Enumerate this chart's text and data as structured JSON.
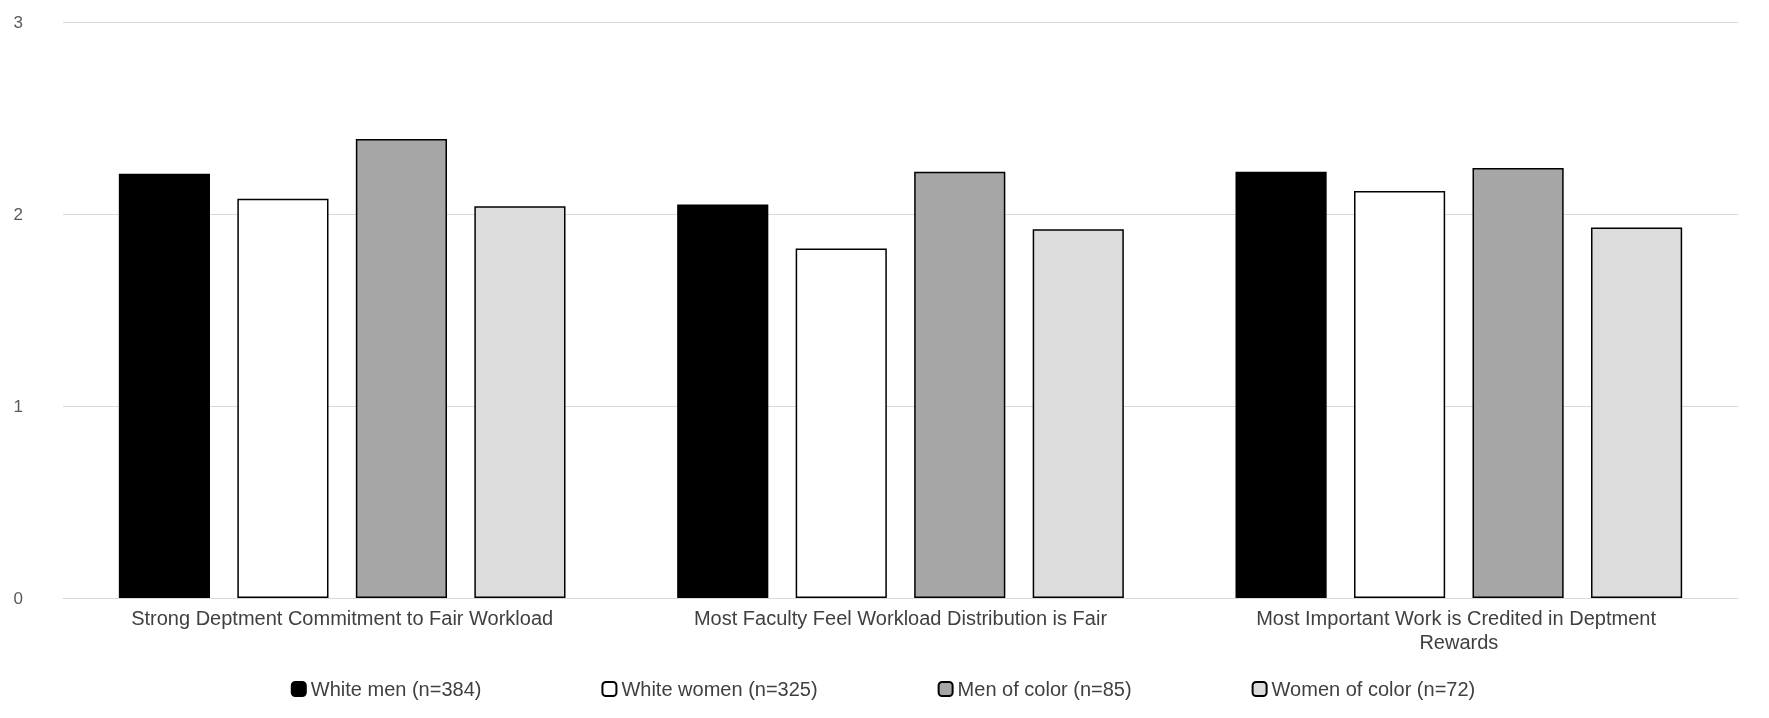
{
  "chart_data": {
    "type": "bar",
    "categories": [
      "Strong Deptment Commitment to Fair Workload",
      "Most Faculty Feel Workload Distribution is Fair",
      "Most Important Work is Credited in Deptment Rewards"
    ],
    "series": [
      {
        "name": "White men (n=384)",
        "color": "#000000",
        "values": [
          2.21,
          2.05,
          2.22
        ]
      },
      {
        "name": "White women (n=325)",
        "color": "#ffffff",
        "values": [
          2.08,
          1.82,
          2.12
        ]
      },
      {
        "name": "Men of color (n=85)",
        "color": "#a6a6a6",
        "values": [
          2.39,
          2.22,
          2.24
        ]
      },
      {
        "name": "Women of color (n=72)",
        "color": "#dcdcdc",
        "values": [
          2.04,
          1.92,
          1.93
        ]
      }
    ],
    "ylim": [
      0,
      3
    ],
    "yticks": [
      0,
      1,
      2,
      3
    ],
    "grid": "y",
    "legend": "bottom"
  }
}
